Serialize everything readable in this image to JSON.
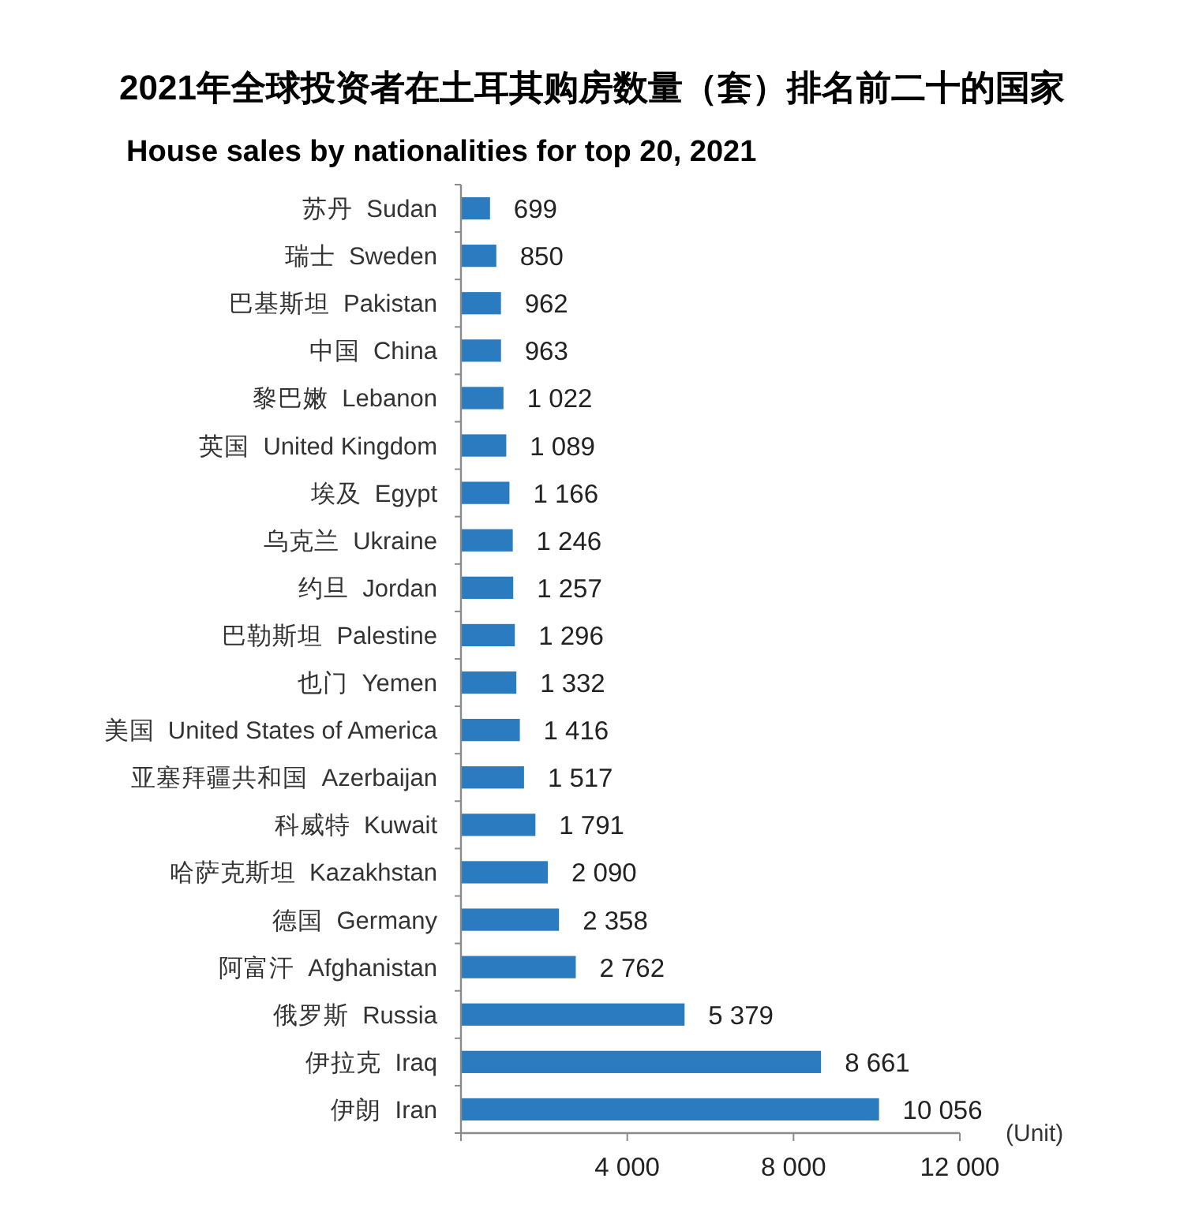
{
  "chart_data": {
    "type": "bar",
    "orientation": "horizontal",
    "title": "2021年全球投资者在土耳其购房数量（套）排名前二十的国家",
    "subtitle": "House sales by nationalities for top 20, 2021",
    "xlabel": "(Unit)",
    "categories": [
      "苏丹  Sudan",
      "瑞士  Sweden",
      "巴基斯坦  Pakistan",
      "中国  China",
      "黎巴嫩  Lebanon",
      "英国  United Kingdom",
      "埃及  Egypt",
      "乌克兰  Ukraine",
      "约旦  Jordan",
      "巴勒斯坦  Palestine",
      "也门  Yemen",
      "美国  United States of America",
      "亚塞拜疆共和国  Azerbaijan",
      "科威特  Kuwait",
      "哈萨克斯坦  Kazakhstan",
      "德国  Germany",
      "阿富汗  Afghanistan",
      "俄罗斯  Russia",
      "伊拉克  Iraq",
      "伊朗  Iran"
    ],
    "values": [
      699,
      850,
      962,
      963,
      1022,
      1089,
      1166,
      1246,
      1257,
      1296,
      1332,
      1416,
      1517,
      1791,
      2090,
      2358,
      2762,
      5379,
      8661,
      10056
    ],
    "value_labels": [
      "699",
      "850",
      "962",
      "963",
      "1 022",
      "1 089",
      "1 166",
      "1 246",
      "1 257",
      "1 296",
      "1 332",
      "1 416",
      "1 517",
      "1 791",
      "2 090",
      "2 358",
      "2 762",
      "5 379",
      "8 661",
      "10 056"
    ],
    "color": "#2b7bc1",
    "xlim": [
      0,
      12000
    ],
    "xticks": [
      {
        "value": 0,
        "label": null
      },
      {
        "value": 4000,
        "label": "4 000"
      },
      {
        "value": 8000,
        "label": "8 000"
      },
      {
        "value": 12000,
        "label": "12 000"
      }
    ]
  }
}
